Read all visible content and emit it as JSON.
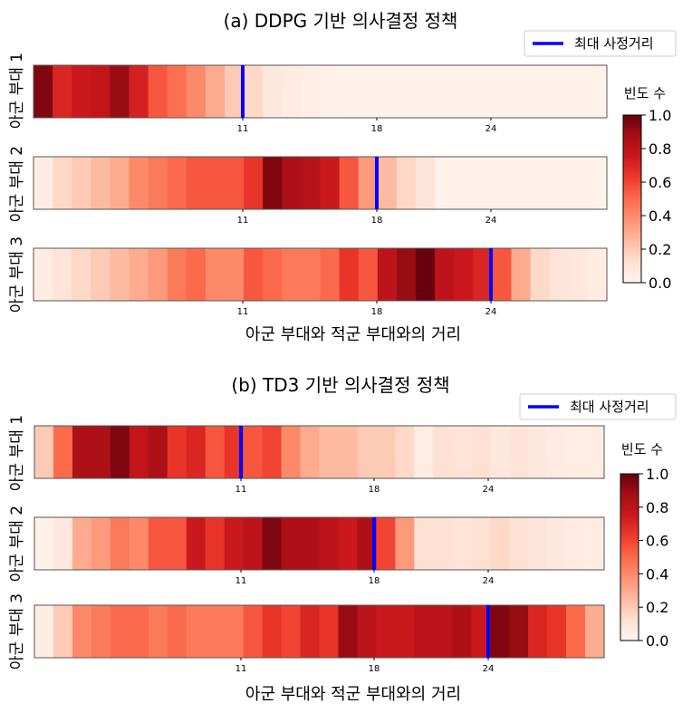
{
  "chart_data": [
    {
      "type": "heatmap",
      "title": "(a) DDPG 기반 의사결정 정책",
      "xlabel": "아군 부대와 적군 부대와의 거리",
      "legend_label": "최대 사정거리",
      "colorbar_label": "빈도 수",
      "colorbar_ticks": [
        "1.0",
        "0.8",
        "0.6",
        "0.4",
        "0.2",
        "0.0"
      ],
      "colorbar_range": [
        0.0,
        1.0
      ],
      "x_ticks": [
        11,
        18,
        24
      ],
      "x_range": [
        0,
        30
      ],
      "rows": [
        {
          "label": "아군 부대 1",
          "max_range": 11,
          "values": [
            0.95,
            0.7,
            0.75,
            0.78,
            0.9,
            0.72,
            0.55,
            0.48,
            0.4,
            0.3,
            0.2,
            0.15,
            0.08,
            0.06,
            0.04,
            0.03,
            0.02,
            0.02,
            0.02,
            0.02,
            0.02,
            0.02,
            0.02,
            0.02,
            0.02,
            0.02,
            0.02,
            0.02,
            0.02,
            0.02
          ]
        },
        {
          "label": "아군 부대 2",
          "max_range": 18,
          "values": [
            0.05,
            0.15,
            0.2,
            0.25,
            0.3,
            0.4,
            0.45,
            0.5,
            0.55,
            0.55,
            0.55,
            0.65,
            0.95,
            0.85,
            0.82,
            0.75,
            0.55,
            0.35,
            0.25,
            0.15,
            0.1,
            0.02,
            0.02,
            0.02,
            0.02,
            0.02,
            0.02,
            0.02,
            0.02,
            0.02
          ]
        },
        {
          "label": "아군 부대 3",
          "max_range": 24,
          "values": [
            0.05,
            0.1,
            0.15,
            0.2,
            0.25,
            0.3,
            0.35,
            0.45,
            0.5,
            0.4,
            0.4,
            0.55,
            0.5,
            0.45,
            0.45,
            0.5,
            0.65,
            0.55,
            0.8,
            0.9,
            1.0,
            0.8,
            0.75,
            0.7,
            0.55,
            0.3,
            0.15,
            0.1,
            0.08,
            0.05
          ]
        }
      ]
    },
    {
      "type": "heatmap",
      "title": "(b) TD3 기반 의사결정 정책",
      "xlabel": "아군 부대와 적군 부대와의 거리",
      "legend_label": "최대 사정거리",
      "colorbar_label": "빈도 수",
      "colorbar_ticks": [
        "1.0",
        "0.8",
        "0.6",
        "0.4",
        "0.2",
        "0.0"
      ],
      "colorbar_range": [
        0.0,
        1.0
      ],
      "x_ticks": [
        11,
        18,
        24
      ],
      "x_range": [
        0,
        30
      ],
      "rows": [
        {
          "label": "아군 부대 1",
          "max_range": 11,
          "values": [
            0.2,
            0.5,
            0.85,
            0.85,
            0.95,
            0.78,
            0.85,
            0.65,
            0.7,
            0.55,
            0.65,
            0.55,
            0.6,
            0.4,
            0.3,
            0.25,
            0.25,
            0.2,
            0.2,
            0.15,
            0.05,
            0.12,
            0.1,
            0.12,
            0.08,
            0.1,
            0.08,
            0.06,
            0.05,
            0.05
          ]
        },
        {
          "label": "아군 부대 2",
          "max_range": 18,
          "values": [
            0.03,
            0.08,
            0.3,
            0.35,
            0.45,
            0.4,
            0.55,
            0.55,
            0.75,
            0.65,
            0.75,
            0.8,
            0.95,
            0.85,
            0.85,
            0.8,
            0.75,
            0.85,
            0.6,
            0.35,
            0.12,
            0.12,
            0.1,
            0.12,
            0.15,
            0.12,
            0.1,
            0.08,
            0.06,
            0.05
          ]
        },
        {
          "label": "아군 부대 3",
          "max_range": 24,
          "values": [
            0.05,
            0.2,
            0.4,
            0.45,
            0.5,
            0.5,
            0.45,
            0.5,
            0.45,
            0.45,
            0.45,
            0.55,
            0.65,
            0.6,
            0.7,
            0.65,
            0.9,
            0.8,
            0.75,
            0.75,
            0.8,
            0.8,
            0.85,
            0.75,
            0.95,
            0.9,
            0.7,
            0.65,
            0.5,
            0.3
          ]
        }
      ]
    }
  ]
}
